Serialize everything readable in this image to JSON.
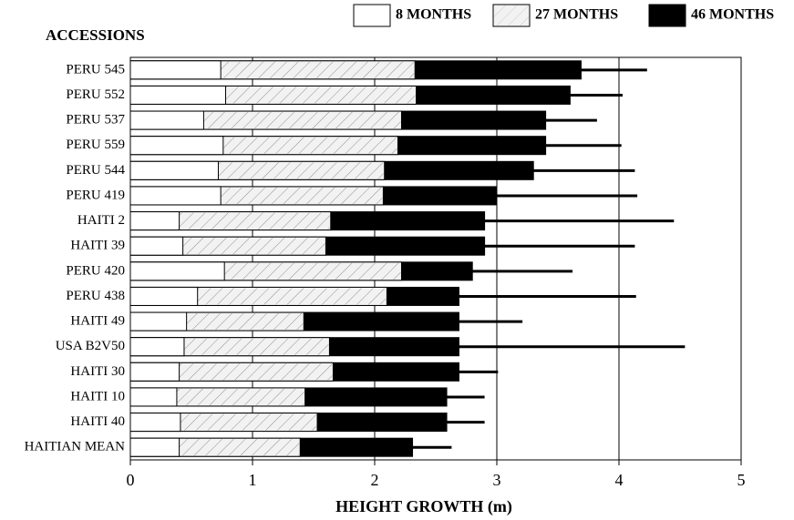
{
  "chart_data": {
    "type": "bar",
    "orientation": "horizontal",
    "overlap": true,
    "title": "ACCESSIONS",
    "x_label": "HEIGHT GROWTH (m)",
    "categories": [
      "PERU 545",
      "PERU 552",
      "PERU 537",
      "PERU 559",
      "PERU 544",
      "PERU 419",
      "HAITI 2",
      "HAITI 39",
      "PERU 420",
      "PERU 438",
      "HAITI 49",
      "USA B2V50",
      "HAITI 30",
      "HAITI 10",
      "HAITI 40",
      "HAITIAN MEAN"
    ],
    "series": [
      {
        "name": "8 MONTHS",
        "color": "#ffffff",
        "values": [
          0.74,
          0.78,
          0.6,
          0.76,
          0.72,
          0.74,
          0.4,
          0.43,
          0.77,
          0.55,
          0.46,
          0.44,
          0.4,
          0.38,
          0.41,
          0.4
        ]
      },
      {
        "name": "27 MONTHS",
        "color": "#f2f2f2",
        "values": [
          2.33,
          2.34,
          2.22,
          2.19,
          2.08,
          2.07,
          1.64,
          1.6,
          2.22,
          2.1,
          1.42,
          1.63,
          1.66,
          1.43,
          1.53,
          1.39
        ]
      },
      {
        "name": "46 MONTHS",
        "color": "#000000",
        "values": [
          3.69,
          3.6,
          3.4,
          3.4,
          3.3,
          3.0,
          2.9,
          2.9,
          2.8,
          2.69,
          2.69,
          2.69,
          2.69,
          2.59,
          2.59,
          2.31
        ],
        "errors": [
          0.54,
          0.43,
          0.42,
          0.62,
          0.83,
          1.15,
          1.55,
          1.23,
          0.82,
          1.45,
          0.52,
          1.85,
          0.32,
          0.31,
          0.31,
          0.32
        ]
      }
    ],
    "xlim": [
      0,
      5
    ],
    "xticks": [
      0,
      1,
      2,
      3,
      4,
      5
    ],
    "grid": true
  }
}
